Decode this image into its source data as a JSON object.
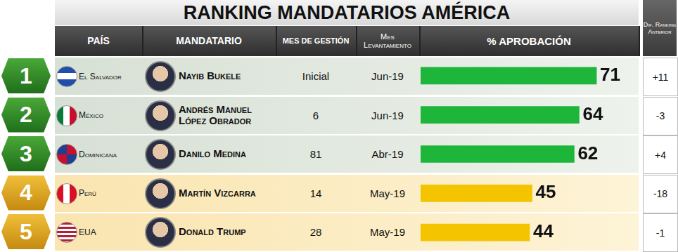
{
  "title": "RANKING MANDATARIOS AMÉRICA",
  "header": {
    "country": "PAÍS",
    "leader": "MANDATARIO",
    "months": "MES DE GESTIÓN",
    "survey": "Mes Levantamiento",
    "approval": "% APROBACIÓN",
    "diff": "Dif. Ranking Anterior"
  },
  "rows": [
    {
      "rank": 1,
      "leader": "Nayib Bukele",
      "months": "Inicial",
      "survey": "Jun-19",
      "diff": "+11"
    },
    {
      "rank": 2,
      "leader": "Andrés Manuel López Obrador",
      "months": 6,
      "survey": "Jun-19",
      "diff": "-3"
    },
    {
      "rank": 3,
      "leader": "Danilo Medina",
      "months": 81,
      "survey": "Abr-19",
      "diff": "+4"
    },
    {
      "rank": 4,
      "leader": "Martín Vizcarra",
      "months": 14,
      "survey": "May-19",
      "diff": "-18"
    },
    {
      "rank": 5,
      "leader": "Donald Trump",
      "months": 28,
      "survey": "May-19",
      "diff": "-1"
    }
  ],
  "chart_data": {
    "type": "bar",
    "orientation": "horizontal",
    "categories": [
      "El Salvador",
      "México",
      "Dominicana",
      "Perú",
      "EUA"
    ],
    "values": [
      71,
      64,
      62,
      45,
      44
    ],
    "colors": [
      "#1db53a",
      "#1db53a",
      "#1db53a",
      "#f5c400",
      "#f5c400"
    ],
    "xlim": [
      0,
      88
    ],
    "grid": false,
    "tick_labels": false,
    "data_labels": true
  }
}
